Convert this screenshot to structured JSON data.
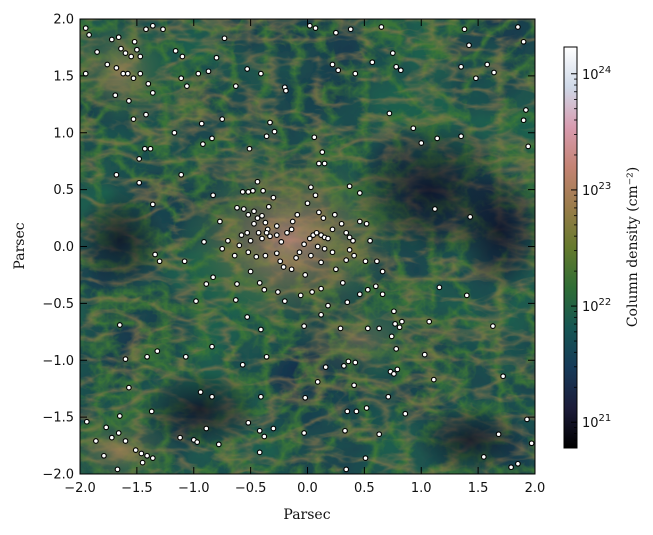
{
  "chart_data": {
    "type": "scatter",
    "background": "column density map",
    "xlabel": "Parsec",
    "ylabel": "Parsec",
    "xlim": [
      -2.0,
      2.0
    ],
    "ylim": [
      -2.0,
      2.0
    ],
    "xticks": [
      "−2.0",
      "−1.5",
      "−1.0",
      "−0.5",
      "0.0",
      "0.5",
      "1.0",
      "1.5",
      "2.0"
    ],
    "yticks": [
      "2.0",
      "1.5",
      "1.0",
      "0.5",
      "0.0",
      "−0.5",
      "−1.0",
      "−1.5",
      "−2.0"
    ],
    "grid": false,
    "colorbar": {
      "label": "Column density (cm⁻²)",
      "scale": "log",
      "range": [
        6e+20,
        1.7e+24
      ],
      "ticks": [
        {
          "label": "10",
          "exp": "21",
          "value": 1e+21
        },
        {
          "label": "10",
          "exp": "22",
          "value": 1e+22
        },
        {
          "label": "10",
          "exp": "23",
          "value": 1e+23
        },
        {
          "label": "10",
          "exp": "24",
          "value": 1e+24
        }
      ],
      "colors": [
        "#000000",
        "#1c1c3a",
        "#163a58",
        "#165653",
        "#2f6d35",
        "#657a2d",
        "#9a7c4a",
        "#c48373",
        "#d89cb0",
        "#cfd9e8",
        "#ffffff"
      ]
    },
    "points": [
      [
        -1.95,
        1.92
      ],
      [
        -1.92,
        1.86
      ],
      [
        -1.85,
        1.71
      ],
      [
        -1.72,
        1.82
      ],
      [
        -1.66,
        1.84
      ],
      [
        -1.64,
        1.74
      ],
      [
        -1.6,
        1.7
      ],
      [
        -1.55,
        1.67
      ],
      [
        -1.52,
        1.8
      ],
      [
        -1.5,
        1.73
      ],
      [
        -1.47,
        1.67
      ],
      [
        -1.42,
        1.91
      ],
      [
        -1.36,
        1.94
      ],
      [
        -1.27,
        1.91
      ],
      [
        -1.16,
        1.72
      ],
      [
        -1.1,
        1.67
      ],
      [
        -1.95,
        1.52
      ],
      [
        -1.76,
        1.6
      ],
      [
        -1.68,
        1.57
      ],
      [
        -1.62,
        1.52
      ],
      [
        -1.58,
        1.52
      ],
      [
        -1.53,
        1.48
      ],
      [
        -1.47,
        1.52
      ],
      [
        -1.4,
        1.43
      ],
      [
        -1.36,
        1.35
      ],
      [
        -1.69,
        1.33
      ],
      [
        -1.57,
        1.28
      ],
      [
        -1.53,
        1.12
      ],
      [
        -1.42,
        1.16
      ],
      [
        -1.11,
        1.48
      ],
      [
        -1.06,
        1.41
      ],
      [
        -0.96,
        1.52
      ],
      [
        -0.87,
        1.54
      ],
      [
        -0.8,
        1.66
      ],
      [
        -0.73,
        1.83
      ],
      [
        -0.63,
        1.41
      ],
      [
        -0.53,
        1.56
      ],
      [
        -0.41,
        1.52
      ],
      [
        -0.33,
        1.09
      ],
      [
        -0.36,
        0.97
      ],
      [
        -0.2,
        1.4
      ],
      [
        -0.19,
        1.37
      ],
      [
        0.02,
        1.94
      ],
      [
        0.07,
        1.92
      ],
      [
        0.25,
        1.88
      ],
      [
        0.38,
        1.91
      ],
      [
        0.65,
        1.93
      ],
      [
        0.22,
        1.6
      ],
      [
        0.27,
        1.55
      ],
      [
        0.42,
        1.52
      ],
      [
        0.57,
        1.62
      ],
      [
        0.75,
        1.7
      ],
      [
        0.78,
        1.58
      ],
      [
        0.82,
        1.55
      ],
      [
        0.72,
        1.17
      ],
      [
        0.93,
        1.04
      ],
      [
        1.38,
        1.91
      ],
      [
        1.42,
        1.77
      ],
      [
        1.58,
        1.6
      ],
      [
        1.64,
        1.53
      ],
      [
        1.85,
        1.93
      ],
      [
        1.9,
        1.8
      ],
      [
        1.35,
        1.58
      ],
      [
        1.48,
        1.48
      ],
      [
        1.92,
        1.2
      ],
      [
        1.9,
        1.11
      ],
      [
        1.14,
        0.95
      ],
      [
        1.0,
        0.91
      ],
      [
        1.35,
        0.97
      ],
      [
        1.94,
        0.88
      ],
      [
        -1.38,
        0.86
      ],
      [
        -1.43,
        0.86
      ],
      [
        -1.48,
        0.77
      ],
      [
        -1.17,
        1.0
      ],
      [
        -0.93,
        1.08
      ],
      [
        -0.92,
        0.9
      ],
      [
        -0.84,
        0.95
      ],
      [
        -0.75,
        1.12
      ],
      [
        -0.51,
        0.86
      ],
      [
        -0.29,
        1.01
      ],
      [
        0.06,
        0.96
      ],
      [
        0.1,
        0.73
      ],
      [
        0.13,
        0.83
      ],
      [
        0.15,
        0.73
      ],
      [
        -1.68,
        0.63
      ],
      [
        -1.48,
        0.56
      ],
      [
        -1.11,
        0.63
      ],
      [
        -0.83,
        0.45
      ],
      [
        -0.34,
        0.35
      ],
      [
        -0.3,
        0.43
      ],
      [
        0.03,
        0.52
      ],
      [
        0.37,
        0.53
      ],
      [
        0.46,
        0.47
      ],
      [
        1.12,
        0.33
      ],
      [
        1.43,
        0.26
      ],
      [
        -1.36,
        0.37
      ],
      [
        -1.3,
        -0.13
      ],
      [
        -1.08,
        -0.13
      ],
      [
        -1.34,
        -0.07
      ],
      [
        -0.52,
        0.48
      ],
      [
        -0.48,
        0.49
      ],
      [
        -0.44,
        0.57
      ],
      [
        -0.39,
        0.49
      ],
      [
        -0.57,
        0.48
      ],
      [
        -0.62,
        0.34
      ],
      [
        -0.56,
        0.33
      ],
      [
        -0.52,
        0.28
      ],
      [
        -0.47,
        0.31
      ],
      [
        -0.44,
        0.25
      ],
      [
        -0.4,
        0.27
      ],
      [
        -0.37,
        0.21
      ],
      [
        -0.35,
        0.15
      ],
      [
        -0.33,
        0.09
      ],
      [
        -0.47,
        0.2
      ],
      [
        -0.53,
        0.12
      ],
      [
        -0.58,
        0.1
      ],
      [
        -0.5,
        0.05
      ],
      [
        -0.43,
        0.12
      ],
      [
        -0.4,
        0.07
      ],
      [
        -0.36,
        0.12
      ],
      [
        -0.27,
        0.18
      ],
      [
        -0.27,
        0.1
      ],
      [
        -0.23,
        0.04
      ],
      [
        -0.18,
        0.12
      ],
      [
        -0.14,
        0.15
      ],
      [
        -0.13,
        0.22
      ],
      [
        -0.09,
        0.28
      ],
      [
        -0.27,
        -0.06
      ],
      [
        -0.37,
        -0.08
      ],
      [
        -0.6,
        0.01
      ],
      [
        -0.7,
        0.05
      ],
      [
        -0.75,
        -0.02
      ],
      [
        -0.77,
        0.22
      ],
      [
        -0.91,
        0.04
      ],
      [
        -0.64,
        -0.08
      ],
      [
        -0.52,
        -0.05
      ],
      [
        -0.45,
        -0.09
      ],
      [
        -0.1,
        -0.1
      ],
      [
        -0.07,
        -0.05
      ],
      [
        -0.03,
        0.02
      ],
      [
        0.02,
        0.07
      ],
      [
        0.05,
        0.1
      ],
      [
        0.08,
        0.12
      ],
      [
        0.12,
        0.1
      ],
      [
        0.15,
        0.08
      ],
      [
        0.18,
        0.07
      ],
      [
        0.22,
        0.15
      ],
      [
        0.1,
        0.3
      ],
      [
        0.0,
        0.38
      ],
      [
        0.07,
        0.45
      ],
      [
        0.14,
        0.25
      ],
      [
        0.24,
        0.28
      ],
      [
        0.3,
        0.2
      ],
      [
        0.34,
        0.12
      ],
      [
        0.37,
        0.08
      ],
      [
        0.4,
        0.05
      ],
      [
        0.46,
        0.22
      ],
      [
        0.52,
        0.2
      ],
      [
        0.55,
        0.05
      ],
      [
        0.09,
        0.0
      ],
      [
        0.15,
        -0.02
      ],
      [
        0.22,
        -0.05
      ],
      [
        0.03,
        -0.08
      ],
      [
        0.12,
        -0.14
      ],
      [
        0.25,
        -0.2
      ],
      [
        0.34,
        -0.12
      ],
      [
        0.37,
        -0.03
      ],
      [
        0.41,
        -0.08
      ],
      [
        0.51,
        -0.13
      ],
      [
        0.61,
        -0.13
      ],
      [
        -0.02,
        -0.25
      ],
      [
        -0.14,
        -0.2
      ],
      [
        -0.21,
        -0.18
      ],
      [
        -0.24,
        -0.13
      ],
      [
        -0.38,
        -0.38
      ],
      [
        -0.42,
        -0.32
      ],
      [
        -0.5,
        -0.22
      ],
      [
        -0.62,
        -0.33
      ],
      [
        -0.83,
        -0.27
      ],
      [
        -0.89,
        -0.33
      ],
      [
        -0.98,
        -0.48
      ],
      [
        -0.63,
        -0.47
      ],
      [
        -0.53,
        -0.62
      ],
      [
        -0.41,
        -0.73
      ],
      [
        -0.26,
        -0.4
      ],
      [
        -0.2,
        -0.48
      ],
      [
        -0.06,
        -0.43
      ],
      [
        0.04,
        -0.4
      ],
      [
        0.12,
        -0.37
      ],
      [
        0.31,
        -0.32
      ],
      [
        0.35,
        -0.49
      ],
      [
        0.46,
        -0.42
      ],
      [
        0.53,
        -0.38
      ],
      [
        0.6,
        -0.35
      ],
      [
        0.66,
        -0.22
      ],
      [
        0.66,
        -0.42
      ],
      [
        -0.03,
        -0.7
      ],
      [
        0.12,
        -0.6
      ],
      [
        0.18,
        -0.52
      ],
      [
        0.29,
        -0.72
      ],
      [
        0.53,
        -0.72
      ],
      [
        0.63,
        -0.72
      ],
      [
        0.76,
        -0.57
      ],
      [
        0.77,
        -0.68
      ],
      [
        0.81,
        -0.71
      ],
      [
        0.83,
        -0.66
      ],
      [
        0.78,
        -0.9
      ],
      [
        0.74,
        -0.79
      ],
      [
        -0.84,
        -0.88
      ],
      [
        -1.07,
        -0.97
      ],
      [
        -1.41,
        -0.97
      ],
      [
        -1.32,
        -0.92
      ],
      [
        -1.65,
        -0.69
      ],
      [
        -1.6,
        -0.99
      ],
      [
        -1.57,
        -1.24
      ],
      [
        -0.57,
        -1.04
      ],
      [
        -0.36,
        -0.97
      ],
      [
        -0.41,
        -1.32
      ],
      [
        -0.84,
        -1.32
      ],
      [
        -0.94,
        -1.28
      ],
      [
        -0.52,
        -1.55
      ],
      [
        -0.42,
        -1.62
      ],
      [
        -0.38,
        -1.67
      ],
      [
        -0.3,
        -1.6
      ],
      [
        -0.42,
        -1.81
      ],
      [
        -0.02,
        -1.33
      ],
      [
        0.09,
        -1.19
      ],
      [
        0.16,
        -1.06
      ],
      [
        0.32,
        -1.05
      ],
      [
        0.36,
        -1.01
      ],
      [
        0.42,
        -1.02
      ],
      [
        0.41,
        -1.22
      ],
      [
        0.43,
        -1.45
      ],
      [
        0.35,
        -1.45
      ],
      [
        0.33,
        -1.62
      ],
      [
        0.52,
        -1.42
      ],
      [
        0.63,
        -1.65
      ],
      [
        0.73,
        -1.1
      ],
      [
        0.76,
        -1.12
      ],
      [
        0.79,
        -1.08
      ],
      [
        0.71,
        -1.32
      ],
      [
        0.86,
        -1.47
      ],
      [
        1.03,
        -0.95
      ],
      [
        1.11,
        -1.17
      ],
      [
        1.07,
        -0.66
      ],
      [
        1.16,
        -0.36
      ],
      [
        1.4,
        -0.43
      ],
      [
        1.55,
        -1.85
      ],
      [
        1.68,
        -1.65
      ],
      [
        1.79,
        -1.94
      ],
      [
        1.85,
        -1.91
      ],
      [
        1.93,
        -1.52
      ],
      [
        1.97,
        -1.73
      ],
      [
        1.63,
        -0.7
      ],
      [
        1.72,
        -1.14
      ],
      [
        -1.94,
        -1.54
      ],
      [
        -1.86,
        -1.71
      ],
      [
        -1.79,
        -1.84
      ],
      [
        -1.77,
        -1.59
      ],
      [
        -1.72,
        -1.68
      ],
      [
        -1.66,
        -1.64
      ],
      [
        -1.65,
        -1.49
      ],
      [
        -1.6,
        -1.71
      ],
      [
        -1.51,
        -1.79
      ],
      [
        -1.46,
        -1.82
      ],
      [
        -1.41,
        -1.84
      ],
      [
        -1.45,
        -1.9
      ],
      [
        -1.36,
        -1.86
      ],
      [
        -1.37,
        -1.45
      ],
      [
        -1.12,
        -1.68
      ],
      [
        -1.0,
        -1.7
      ],
      [
        -0.89,
        -1.6
      ],
      [
        -0.78,
        -1.74
      ],
      [
        -0.97,
        -1.72
      ],
      [
        -1.67,
        -1.96
      ],
      [
        0.34,
        -1.96
      ],
      [
        0.51,
        -1.86
      ],
      [
        -0.03,
        -1.64
      ]
    ]
  }
}
